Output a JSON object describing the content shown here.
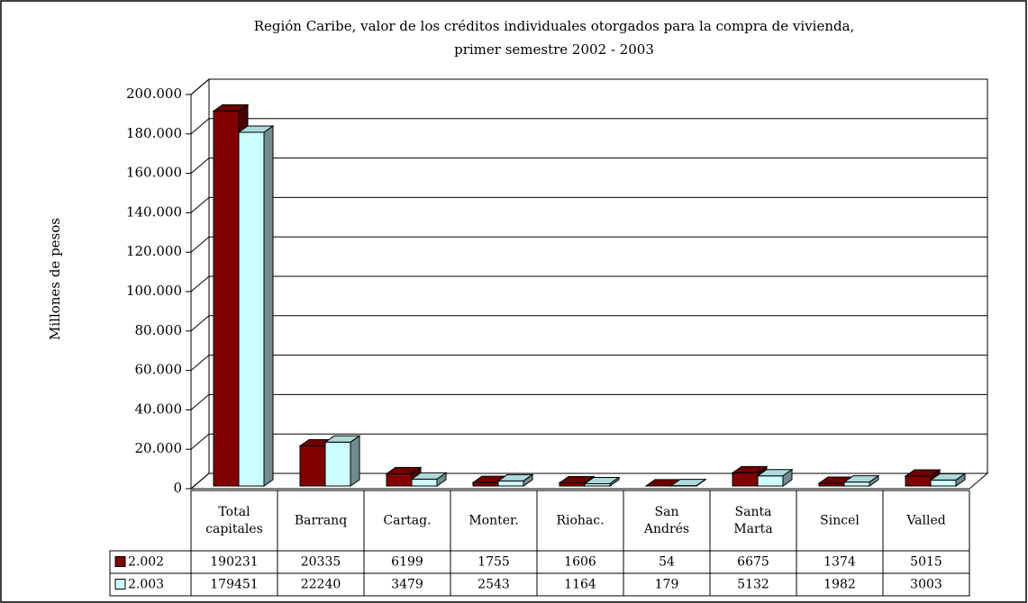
{
  "chart_data": {
    "type": "bar3d",
    "title": [
      "Región Caribe, valor de los créditos individuales otorgados para la compra de vivienda,",
      "primer semestre 2002 - 2003"
    ],
    "y_label": "Millones de pesos",
    "categories": [
      "Total capitales",
      "Barranq",
      "Cartag.",
      "Monter.",
      "Riohac.",
      "San Andrés",
      "Santa Marta",
      "Sincel",
      "Valled"
    ],
    "series": [
      {
        "name": "2.002",
        "color": "#800000",
        "values": [
          190231,
          20335,
          6199,
          1755,
          1606,
          54,
          6675,
          1374,
          5015
        ]
      },
      {
        "name": "2.003",
        "color": "#ccffff",
        "values": [
          179451,
          22240,
          3479,
          2543,
          1164,
          179,
          5132,
          1982,
          3003
        ]
      }
    ],
    "ylim": [
      0,
      200000
    ],
    "yticks": [
      {
        "value": 0,
        "label": "0"
      },
      {
        "value": 20000,
        "label": "20.000"
      },
      {
        "value": 40000,
        "label": "40.000"
      },
      {
        "value": 60000,
        "label": "60.000"
      },
      {
        "value": 80000,
        "label": "80.000"
      },
      {
        "value": 100000,
        "label": "100.000"
      },
      {
        "value": 120000,
        "label": "120.000"
      },
      {
        "value": 140000,
        "label": "140.000"
      },
      {
        "value": 160000,
        "label": "160.000"
      },
      {
        "value": 180000,
        "label": "180.000"
      },
      {
        "value": 200000,
        "label": "200.000"
      }
    ],
    "grid": true
  }
}
